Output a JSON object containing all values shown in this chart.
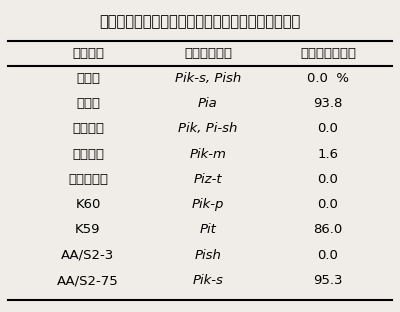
{
  "title": "表１　メコンデルタに分布するいもち病菌の病原性",
  "headers": [
    "判別品種",
    "抵抗性遺伝子",
    "病原性菌株割合"
  ],
  "rows": [
    [
      "新２号",
      "Pik-s, Pish",
      "0.0  %"
    ],
    [
      "愛知旭",
      "Pia",
      "93.8"
    ],
    [
      "クサブエ",
      "Pik, Pi-sh",
      "0.0"
    ],
    [
      "ツユアケ",
      "Pik-m",
      "1.6"
    ],
    [
      "とりで１号",
      "Piz-t",
      "0.0"
    ],
    [
      "K60",
      "Pik-p",
      "0.0"
    ],
    [
      "K59",
      "Pit",
      "86.0"
    ],
    [
      "AA/S2-3",
      "Pish",
      "0.0"
    ],
    [
      "AA/S2-75",
      "Pik-s",
      "95.3"
    ]
  ],
  "bg_color": "#f0ede8",
  "title_fontsize": 10.5,
  "header_fontsize": 9.5,
  "row_fontsize": 9.5,
  "italic_col": 1
}
